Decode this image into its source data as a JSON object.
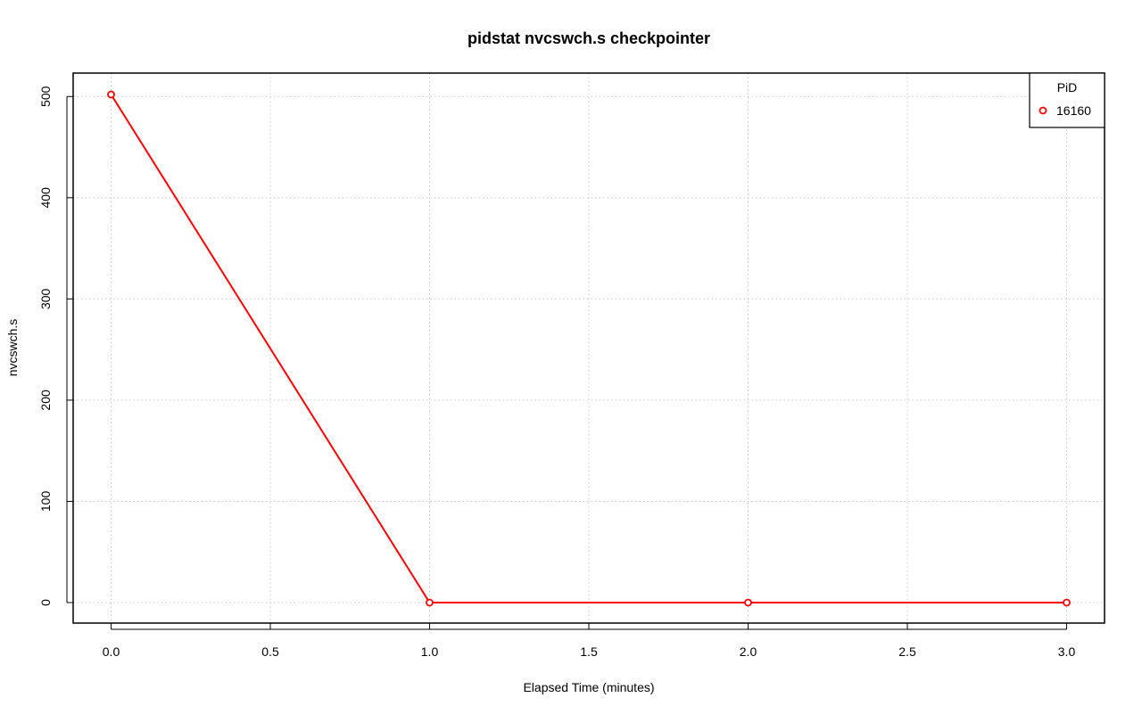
{
  "chart_data": {
    "type": "line",
    "title": "pidstat nvcswch.s checkpointer",
    "xlabel": "Elapsed Time (minutes)",
    "ylabel": "nvcswch.s",
    "xlim": [
      0,
      3
    ],
    "ylim": [
      0,
      502
    ],
    "x_ticks": [
      "0.0",
      "0.5",
      "1.0",
      "1.5",
      "2.0",
      "2.5",
      "3.0"
    ],
    "y_ticks": [
      "0",
      "100",
      "200",
      "300",
      "400",
      "500"
    ],
    "grid": true,
    "legend": {
      "title": "PiD",
      "placement": "top-right"
    },
    "series": [
      {
        "name": "16160",
        "color": "#ff0000",
        "x": [
          0,
          1,
          2,
          3
        ],
        "y": [
          502,
          0,
          0,
          0
        ]
      }
    ]
  }
}
